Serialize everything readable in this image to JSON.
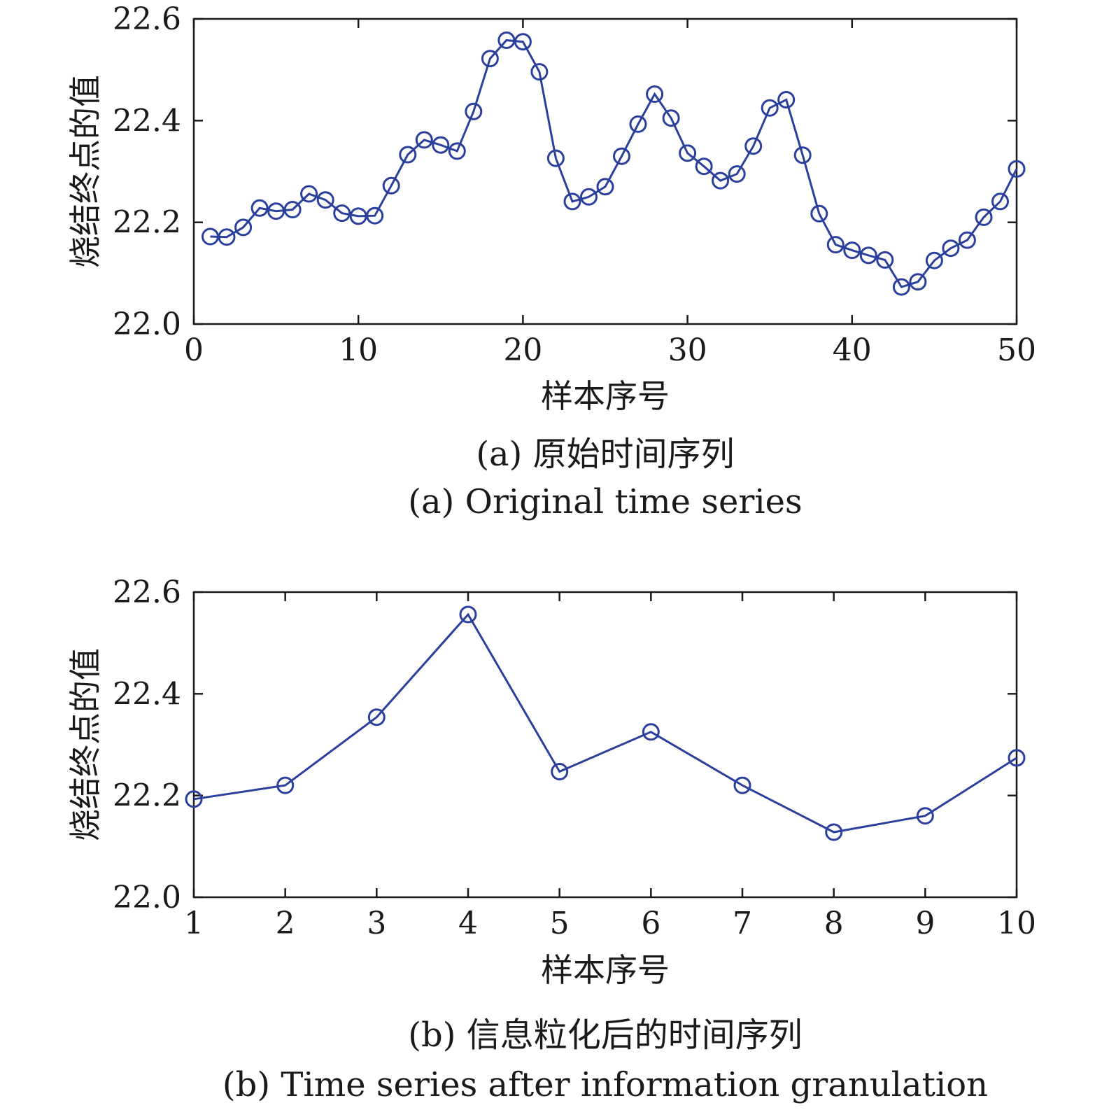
{
  "chart_data": [
    {
      "type": "line",
      "caption_zh": "(a) 原始时间序列",
      "caption_en": "(a) Original time series",
      "xlabel": "样本序号",
      "ylabel": "烧结终点的值",
      "xlim": [
        0,
        50
      ],
      "ylim": [
        22.0,
        22.6
      ],
      "xticks": [
        "0",
        "10",
        "20",
        "30",
        "40",
        "50"
      ],
      "yticks": [
        "22.0",
        "22.2",
        "22.4",
        "22.6"
      ],
      "x": [
        1,
        2,
        3,
        4,
        5,
        6,
        7,
        8,
        9,
        10,
        11,
        12,
        13,
        14,
        15,
        16,
        17,
        18,
        19,
        20,
        21,
        22,
        23,
        24,
        25,
        26,
        27,
        28,
        29,
        30,
        31,
        32,
        33,
        34,
        35,
        36,
        37,
        38,
        39,
        40,
        41,
        42,
        43,
        44,
        45,
        46,
        47,
        48,
        49,
        50
      ],
      "values": [
        22.172,
        22.171,
        22.19,
        22.228,
        22.222,
        22.225,
        22.256,
        22.244,
        22.218,
        22.212,
        22.213,
        22.272,
        22.333,
        22.362,
        22.352,
        22.34,
        22.418,
        22.522,
        22.558,
        22.555,
        22.496,
        22.326,
        22.241,
        22.25,
        22.27,
        22.33,
        22.393,
        22.452,
        22.405,
        22.336,
        22.31,
        22.282,
        22.295,
        22.35,
        22.425,
        22.441,
        22.332,
        22.217,
        22.156,
        22.145,
        22.135,
        22.126,
        22.073,
        22.083,
        22.125,
        22.149,
        22.165,
        22.21,
        22.241,
        22.305
      ],
      "color": "#2b3f9c",
      "marker": "circle",
      "grid": false
    },
    {
      "type": "line",
      "caption_zh": "(b) 信息粒化后的时间序列",
      "caption_en": "(b) Time series after information granulation",
      "xlabel": "样本序号",
      "ylabel": "烧结终点的值",
      "xlim": [
        1,
        10
      ],
      "ylim": [
        22.0,
        22.6
      ],
      "xticks": [
        "1",
        "2",
        "3",
        "4",
        "5",
        "6",
        "7",
        "8",
        "9",
        "10"
      ],
      "yticks": [
        "22.0",
        "22.2",
        "22.4",
        "22.6"
      ],
      "x": [
        1,
        2,
        3,
        4,
        5,
        6,
        7,
        8,
        9,
        10
      ],
      "values": [
        22.193,
        22.22,
        22.354,
        22.556,
        22.247,
        22.325,
        22.22,
        22.128,
        22.16,
        22.274
      ],
      "color": "#2b3f9c",
      "marker": "circle",
      "grid": false
    }
  ]
}
